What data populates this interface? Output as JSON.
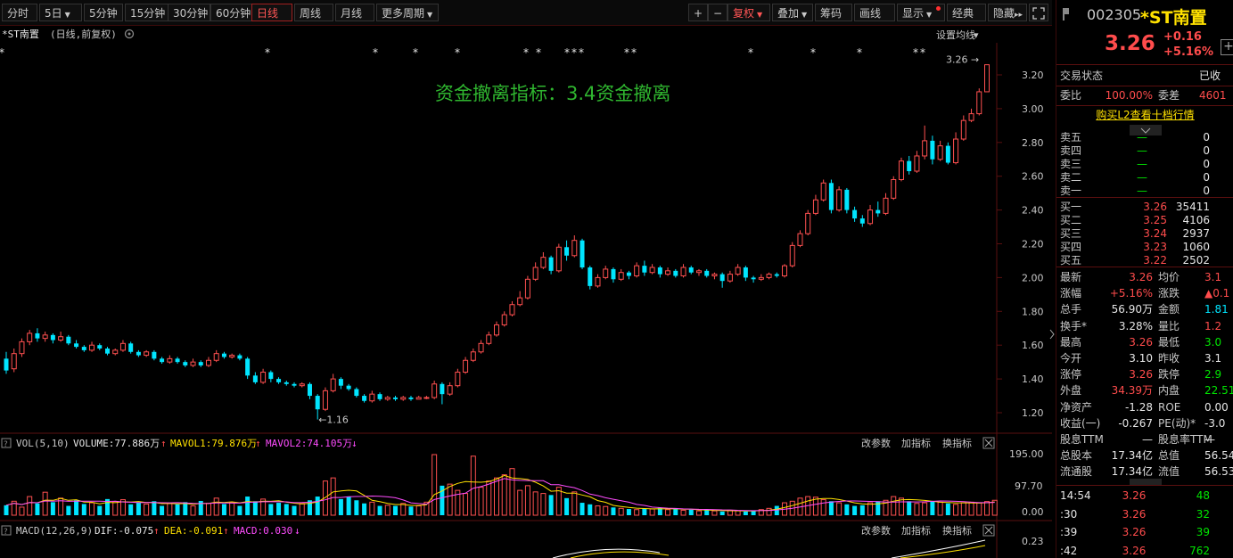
{
  "toolbar": {
    "periods": [
      "分时",
      "5日",
      "5分钟",
      "15分钟",
      "30分钟",
      "60分钟",
      "日线",
      "周线",
      "月线",
      "更多周期"
    ],
    "right": [
      "+",
      "−",
      "复权",
      "叠加",
      "筹码",
      "画线",
      "显示",
      "经典",
      "隐藏"
    ],
    "expand_icon": "expand-icon"
  },
  "chart": {
    "stock_label": "*ST南置",
    "mode": "(日线,前复权)",
    "settings_label": "设置均线",
    "annotation": "资金撤离指标：3.4资金撤离",
    "high_marker": "3.26",
    "low_marker": "1.16",
    "y_ticks": [
      "3.20",
      "3.00",
      "2.80",
      "2.60",
      "2.40",
      "2.20",
      "2.00",
      "1.80",
      "1.60",
      "1.40",
      "1.20"
    ],
    "vol": {
      "title": "VOL(5,10)",
      "volume": "VOLUME:77.886万",
      "mavol1": "MAVOL1:79.876万",
      "mavol2": "MAVOL2:74.105万",
      "ticks": [
        "195.00",
        "97.70",
        "0.00"
      ],
      "actions": [
        "改参数",
        "加指标",
        "换指标"
      ]
    },
    "macd": {
      "title": "MACD(12,26,9)",
      "dif": "DIF:-0.075",
      "dea": "DEA:-0.091",
      "macd": "MACD:0.030",
      "tick": "0.23",
      "actions": [
        "改参数",
        "加指标",
        "换指标"
      ]
    }
  },
  "chart_data": {
    "type": "candlestick",
    "title": "",
    "ylim": [
      1.1,
      3.3
    ],
    "candles": [
      [
        1.52,
        1.45,
        1.56,
        1.43
      ],
      [
        1.46,
        1.55,
        1.58,
        1.44
      ],
      [
        1.55,
        1.62,
        1.64,
        1.53
      ],
      [
        1.62,
        1.67,
        1.69,
        1.6
      ],
      [
        1.67,
        1.64,
        1.7,
        1.62
      ],
      [
        1.64,
        1.66,
        1.68,
        1.62
      ],
      [
        1.66,
        1.63,
        1.67,
        1.61
      ],
      [
        1.63,
        1.65,
        1.68,
        1.62
      ],
      [
        1.65,
        1.61,
        1.66,
        1.6
      ],
      [
        1.61,
        1.59,
        1.63,
        1.58
      ],
      [
        1.59,
        1.57,
        1.6,
        1.56
      ],
      [
        1.57,
        1.6,
        1.62,
        1.56
      ],
      [
        1.6,
        1.58,
        1.61,
        1.57
      ],
      [
        1.58,
        1.55,
        1.59,
        1.54
      ],
      [
        1.55,
        1.57,
        1.58,
        1.54
      ],
      [
        1.57,
        1.61,
        1.63,
        1.56
      ],
      [
        1.61,
        1.56,
        1.62,
        1.55
      ],
      [
        1.56,
        1.54,
        1.57,
        1.53
      ],
      [
        1.54,
        1.56,
        1.57,
        1.53
      ],
      [
        1.56,
        1.52,
        1.57,
        1.51
      ],
      [
        1.52,
        1.5,
        1.53,
        1.49
      ],
      [
        1.5,
        1.52,
        1.54,
        1.49
      ],
      [
        1.52,
        1.5,
        1.53,
        1.49
      ],
      [
        1.5,
        1.48,
        1.51,
        1.47
      ],
      [
        1.48,
        1.5,
        1.52,
        1.47
      ],
      [
        1.5,
        1.48,
        1.51,
        1.47
      ],
      [
        1.48,
        1.51,
        1.53,
        1.47
      ],
      [
        1.51,
        1.55,
        1.57,
        1.5
      ],
      [
        1.55,
        1.53,
        1.56,
        1.52
      ],
      [
        1.53,
        1.54,
        1.55,
        1.52
      ],
      [
        1.54,
        1.52,
        1.55,
        1.51
      ],
      [
        1.52,
        1.42,
        1.53,
        1.4
      ],
      [
        1.42,
        1.38,
        1.44,
        1.37
      ],
      [
        1.38,
        1.44,
        1.46,
        1.37
      ],
      [
        1.44,
        1.4,
        1.45,
        1.38
      ],
      [
        1.4,
        1.38,
        1.41,
        1.37
      ],
      [
        1.38,
        1.37,
        1.39,
        1.36
      ],
      [
        1.37,
        1.36,
        1.38,
        1.35
      ],
      [
        1.36,
        1.37,
        1.38,
        1.35
      ],
      [
        1.37,
        1.3,
        1.38,
        1.28
      ],
      [
        1.3,
        1.22,
        1.31,
        1.16
      ],
      [
        1.22,
        1.33,
        1.35,
        1.21
      ],
      [
        1.33,
        1.4,
        1.43,
        1.32
      ],
      [
        1.4,
        1.36,
        1.41,
        1.34
      ],
      [
        1.36,
        1.34,
        1.37,
        1.33
      ],
      [
        1.34,
        1.3,
        1.35,
        1.29
      ],
      [
        1.3,
        1.27,
        1.31,
        1.26
      ],
      [
        1.27,
        1.31,
        1.33,
        1.26
      ],
      [
        1.31,
        1.28,
        1.32,
        1.27
      ],
      [
        1.28,
        1.29,
        1.3,
        1.27
      ],
      [
        1.29,
        1.28,
        1.3,
        1.27
      ],
      [
        1.28,
        1.29,
        1.3,
        1.27
      ],
      [
        1.29,
        1.28,
        1.3,
        1.27
      ],
      [
        1.28,
        1.29,
        1.3,
        1.28
      ],
      [
        1.29,
        1.29,
        1.3,
        1.28
      ],
      [
        1.29,
        1.37,
        1.39,
        1.28
      ],
      [
        1.37,
        1.31,
        1.38,
        1.25
      ],
      [
        1.31,
        1.36,
        1.38,
        1.3
      ],
      [
        1.36,
        1.44,
        1.46,
        1.35
      ],
      [
        1.44,
        1.51,
        1.53,
        1.43
      ],
      [
        1.51,
        1.56,
        1.58,
        1.5
      ],
      [
        1.56,
        1.61,
        1.63,
        1.55
      ],
      [
        1.61,
        1.66,
        1.68,
        1.6
      ],
      [
        1.66,
        1.72,
        1.74,
        1.65
      ],
      [
        1.72,
        1.78,
        1.8,
        1.71
      ],
      [
        1.78,
        1.84,
        1.86,
        1.77
      ],
      [
        1.84,
        1.88,
        1.92,
        1.83
      ],
      [
        1.88,
        1.99,
        2.01,
        1.87
      ],
      [
        1.99,
        2.06,
        2.09,
        1.98
      ],
      [
        2.06,
        2.12,
        2.15,
        2.05
      ],
      [
        2.12,
        2.04,
        2.13,
        2.02
      ],
      [
        2.04,
        2.18,
        2.2,
        2.03
      ],
      [
        2.18,
        2.13,
        2.22,
        2.1
      ],
      [
        2.13,
        2.22,
        2.25,
        2.12
      ],
      [
        2.22,
        2.06,
        2.23,
        2.05
      ],
      [
        2.06,
        1.95,
        2.07,
        1.93
      ],
      [
        1.95,
        2.0,
        2.02,
        1.94
      ],
      [
        2.0,
        2.05,
        2.07,
        1.99
      ],
      [
        2.05,
        1.99,
        2.06,
        1.97
      ],
      [
        1.99,
        2.03,
        2.05,
        1.98
      ],
      [
        2.03,
        2.01,
        2.04,
        1.99
      ],
      [
        2.01,
        2.07,
        2.09,
        2.0
      ],
      [
        2.07,
        2.03,
        2.1,
        2.01
      ],
      [
        2.03,
        2.06,
        2.08,
        2.02
      ],
      [
        2.06,
        2.02,
        2.07,
        2.0
      ],
      [
        2.02,
        2.04,
        2.06,
        2.01
      ],
      [
        2.04,
        2.01,
        2.05,
        2.0
      ],
      [
        2.01,
        2.06,
        2.08,
        2.0
      ],
      [
        2.06,
        2.03,
        2.07,
        2.02
      ],
      [
        2.03,
        2.04,
        2.05,
        2.01
      ],
      [
        2.04,
        2.01,
        2.05,
        2.0
      ],
      [
        2.01,
        2.02,
        2.03,
        1.99
      ],
      [
        2.02,
        1.98,
        2.03,
        1.94
      ],
      [
        1.98,
        2.02,
        2.04,
        1.97
      ],
      [
        2.02,
        2.06,
        2.08,
        2.01
      ],
      [
        2.06,
        2.0,
        2.07,
        1.98
      ],
      [
        2.0,
        1.99,
        2.01,
        1.97
      ],
      [
        1.99,
        2.0,
        2.02,
        1.98
      ],
      [
        2.0,
        2.02,
        2.03,
        1.99
      ],
      [
        2.02,
        2.01,
        2.03,
        2.0
      ],
      [
        2.01,
        2.07,
        2.08,
        2.0
      ],
      [
        2.07,
        2.19,
        2.21,
        2.06
      ],
      [
        2.19,
        2.26,
        2.28,
        2.18
      ],
      [
        2.26,
        2.38,
        2.4,
        2.25
      ],
      [
        2.38,
        2.46,
        2.49,
        2.37
      ],
      [
        2.46,
        2.56,
        2.58,
        2.45
      ],
      [
        2.56,
        2.4,
        2.58,
        2.38
      ],
      [
        2.4,
        2.52,
        2.54,
        2.39
      ],
      [
        2.52,
        2.4,
        2.53,
        2.38
      ],
      [
        2.4,
        2.35,
        2.42,
        2.33
      ],
      [
        2.35,
        2.32,
        2.37,
        2.3
      ],
      [
        2.32,
        2.4,
        2.43,
        2.31
      ],
      [
        2.4,
        2.38,
        2.45,
        2.36
      ],
      [
        2.38,
        2.47,
        2.5,
        2.37
      ],
      [
        2.47,
        2.58,
        2.6,
        2.46
      ],
      [
        2.58,
        2.69,
        2.71,
        2.57
      ],
      [
        2.69,
        2.63,
        2.72,
        2.61
      ],
      [
        2.63,
        2.72,
        2.75,
        2.62
      ],
      [
        2.72,
        2.81,
        2.9,
        2.7
      ],
      [
        2.81,
        2.7,
        2.84,
        2.67
      ],
      [
        2.7,
        2.78,
        2.81,
        2.69
      ],
      [
        2.78,
        2.68,
        2.8,
        2.67
      ],
      [
        2.68,
        2.82,
        2.86,
        2.67
      ],
      [
        2.82,
        2.93,
        2.96,
        2.81
      ],
      [
        2.93,
        2.97,
        3.0,
        2.92
      ],
      [
        2.97,
        3.1,
        3.12,
        2.96
      ],
      [
        3.1,
        3.26,
        3.26,
        3.1
      ]
    ],
    "volume": [
      32,
      45,
      26,
      60,
      38,
      74,
      42,
      55,
      30,
      48,
      36,
      40,
      30,
      52,
      44,
      50,
      35,
      40,
      36,
      45,
      30,
      38,
      35,
      42,
      30,
      46,
      38,
      55,
      36,
      40,
      30,
      60,
      45,
      52,
      36,
      40,
      36,
      30,
      38,
      48,
      60,
      110,
      120,
      52,
      60,
      48,
      38,
      42,
      30,
      32,
      30,
      38,
      28,
      30,
      42,
      195,
      95,
      100,
      80,
      70,
      190,
      90,
      110,
      120,
      130,
      150,
      80,
      95,
      75,
      70,
      65,
      90,
      55,
      75,
      40,
      35,
      30,
      28,
      25,
      22,
      20,
      18,
      22,
      20,
      24,
      18,
      20,
      16,
      18,
      14,
      16,
      14,
      12,
      16,
      14,
      12,
      14,
      18,
      22,
      30,
      40,
      45,
      55,
      60,
      58,
      50,
      45,
      40,
      35,
      30,
      32,
      40,
      45,
      48,
      60,
      55,
      45,
      38,
      40,
      45,
      42,
      38,
      35,
      40,
      42,
      40,
      44,
      48
    ],
    "price_labels": [
      "3.20",
      "3.00",
      "2.80",
      "2.60",
      "2.40",
      "2.20",
      "2.00",
      "1.80",
      "1.60",
      "1.40",
      "1.20"
    ]
  },
  "panel": {
    "code": "002305",
    "name": "*ST南置",
    "price": "3.26",
    "change": "+0.16",
    "change_pct": "+5.16%",
    "trade_state_label": "交易状态",
    "trade_state": "已收",
    "weibi_label": "委比",
    "weibi": "100.00%",
    "weicha_label": "委差",
    "weicha": "4601",
    "l2_link": "购买L2查看十档行情",
    "asks": [
      {
        "label": "卖五",
        "price": "—",
        "vol": "0"
      },
      {
        "label": "卖四",
        "price": "—",
        "vol": "0"
      },
      {
        "label": "卖三",
        "price": "—",
        "vol": "0"
      },
      {
        "label": "卖二",
        "price": "—",
        "vol": "0"
      },
      {
        "label": "卖一",
        "price": "—",
        "vol": "0"
      }
    ],
    "bids": [
      {
        "label": "买一",
        "price": "3.26",
        "vol": "35411"
      },
      {
        "label": "买二",
        "price": "3.25",
        "vol": "4106"
      },
      {
        "label": "买三",
        "price": "3.24",
        "vol": "2937"
      },
      {
        "label": "买四",
        "price": "3.23",
        "vol": "1060"
      },
      {
        "label": "买五",
        "price": "3.22",
        "vol": "2502"
      }
    ],
    "stats": [
      {
        "l1": "最新",
        "v1": "3.26",
        "c1": "red",
        "l2": "均价",
        "v2": "3.1",
        "c2": "red"
      },
      {
        "l1": "涨幅",
        "v1": "+5.16%",
        "c1": "red",
        "l2": "涨跌",
        "v2": "▲0.1",
        "c2": "red"
      },
      {
        "l1": "总手",
        "v1": "56.90万",
        "c1": "white",
        "l2": "金额",
        "v2": "1.81",
        "c2": "cyan"
      },
      {
        "l1": "换手*",
        "v1": "3.28%",
        "c1": "white",
        "l2": "量比",
        "v2": "1.2",
        "c2": "red"
      },
      {
        "l1": "最高",
        "v1": "3.26",
        "c1": "red",
        "l2": "最低",
        "v2": "3.0",
        "c2": "green"
      },
      {
        "l1": "今开",
        "v1": "3.10",
        "c1": "white",
        "l2": "昨收",
        "v2": "3.1",
        "c2": "white"
      },
      {
        "l1": "涨停",
        "v1": "3.26",
        "c1": "red",
        "l2": "跌停",
        "v2": "2.9",
        "c2": "green"
      },
      {
        "l1": "外盘",
        "v1": "34.39万",
        "c1": "red",
        "l2": "内盘",
        "v2": "22.51",
        "c2": "green"
      },
      {
        "l1": "净资产",
        "v1": "-1.28",
        "c1": "white",
        "l2": "ROE",
        "v2": "0.00",
        "c2": "white"
      },
      {
        "l1": "收益(一)",
        "v1": "-0.267",
        "c1": "white",
        "l2": "PE(动)*",
        "v2": "-3.0",
        "c2": "white"
      },
      {
        "l1": "股息TTM",
        "v1": "—",
        "c1": "white",
        "l2": "股息率TTM",
        "v2": "—",
        "c2": "white"
      },
      {
        "l1": "总股本",
        "v1": "17.34亿",
        "c1": "white",
        "l2": "总值",
        "v2": "56.54",
        "c2": "white"
      },
      {
        "l1": "流通股",
        "v1": "17.34亿",
        "c1": "white",
        "l2": "流值",
        "v2": "56.53",
        "c2": "white"
      }
    ],
    "ticks": [
      {
        "time": "14:54",
        "price": "3.26",
        "vol": "48"
      },
      {
        "time": ":30",
        "price": "3.26",
        "vol": "32"
      },
      {
        "time": ":39",
        "price": "3.26",
        "vol": "39"
      },
      {
        "time": ":42",
        "price": "3.26",
        "vol": "762"
      }
    ]
  }
}
